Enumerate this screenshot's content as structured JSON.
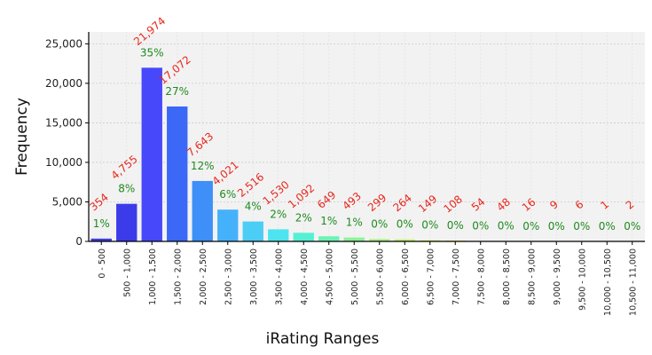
{
  "chart_data": {
    "type": "bar",
    "title": "",
    "xlabel": "iRating Ranges",
    "ylabel": "Frequency",
    "ylim": [
      0,
      26500
    ],
    "yticks": [
      0,
      5000,
      10000,
      15000,
      20000,
      25000
    ],
    "ytick_labels": [
      "0",
      "5,000",
      "10,000",
      "15,000",
      "20,000",
      "25,000"
    ],
    "grid": true,
    "legend": "none",
    "categories": [
      "0 - 500",
      "500 - 1,000",
      "1,000 - 1,500",
      "1,500 - 2,000",
      "2,000 - 2,500",
      "2,500 - 3,000",
      "3,000 - 3,500",
      "3,500 - 4,000",
      "4,000 - 4,500",
      "4,500 - 5,000",
      "5,000 - 5,500",
      "5,500 - 6,000",
      "6,000 - 6,500",
      "6,500 - 7,000",
      "7,000 - 7,500",
      "7,500 - 8,000",
      "8,000 - 8,500",
      "8,500 - 9,000",
      "9,000 - 9,500",
      "9,500 - 10,000",
      "10,000 - 10,500",
      "10,500 - 11,000"
    ],
    "values": [
      354,
      4755,
      21974,
      17072,
      7643,
      4021,
      2516,
      1530,
      1092,
      649,
      493,
      299,
      264,
      149,
      108,
      54,
      48,
      16,
      9,
      6,
      1,
      2
    ],
    "count_labels": [
      "354",
      "4,755",
      "21,974",
      "17,072",
      "7,643",
      "4,021",
      "2,516",
      "1,530",
      "1,092",
      "649",
      "493",
      "299",
      "264",
      "149",
      "108",
      "54",
      "48",
      "16",
      "9",
      "6",
      "1",
      "2"
    ],
    "percent_labels": [
      "1%",
      "8%",
      "35%",
      "27%",
      "12%",
      "6%",
      "4%",
      "2%",
      "2%",
      "1%",
      "1%",
      "0%",
      "0%",
      "0%",
      "0%",
      "0%",
      "0%",
      "0%",
      "0%",
      "0%",
      "0%",
      "0%"
    ],
    "colors": {
      "bars": [
        "#3d3ddf",
        "#3b3bea",
        "#4848fb",
        "#3c68f8",
        "#3e8ff7",
        "#45b1fa",
        "#4bcdf6",
        "#4de4ef",
        "#55f0d4",
        "#6ef2b5",
        "#8bf39a",
        "#a8f380",
        "#c4f16b",
        "#dcee5b",
        "#efe650",
        "#f7d248",
        "#f7b342",
        "#f4913c",
        "#ef6b35",
        "#e94b2f",
        "#e2352b",
        "#db2a27"
      ],
      "count_label": "#e8281d",
      "percent_label": "#1f8a1f",
      "plot_background": "#f2f2f2",
      "grid": "#cccccc"
    }
  }
}
